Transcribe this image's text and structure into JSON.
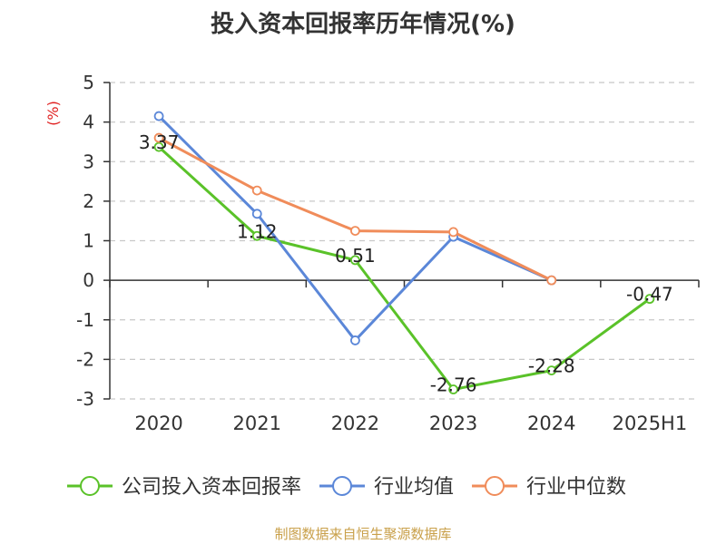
{
  "title": "投入资本回报率历年情况(%)",
  "source": "制图数据来自恒生聚源数据库",
  "chart_data": {
    "type": "line",
    "title": "投入资本回报率历年情况(%)",
    "ylabel": "(%)",
    "categories": [
      "2020",
      "2021",
      "2022",
      "2023",
      "2024",
      "2025H1"
    ],
    "ylim": [
      -3,
      5
    ],
    "yticks": [
      5,
      4,
      3,
      2,
      1,
      0,
      -1,
      -2,
      -3
    ],
    "grid": true,
    "legend_position": "bottom",
    "series": [
      {
        "name": "公司投入资本回报率",
        "color": "#5ac229",
        "values": [
          3.37,
          1.12,
          0.51,
          -2.76,
          -2.28,
          -0.47
        ],
        "data_labels": [
          "3.37",
          "1.12",
          "0.51",
          "-2.76",
          "-2.28",
          "-0.47"
        ]
      },
      {
        "name": "行业均值",
        "color": "#5b87d8",
        "values": [
          4.15,
          1.68,
          -1.52,
          1.1,
          0.0,
          null
        ]
      },
      {
        "name": "行业中位数",
        "color": "#f08c5a",
        "values": [
          3.6,
          2.27,
          1.25,
          1.22,
          0.0,
          null
        ]
      }
    ]
  }
}
